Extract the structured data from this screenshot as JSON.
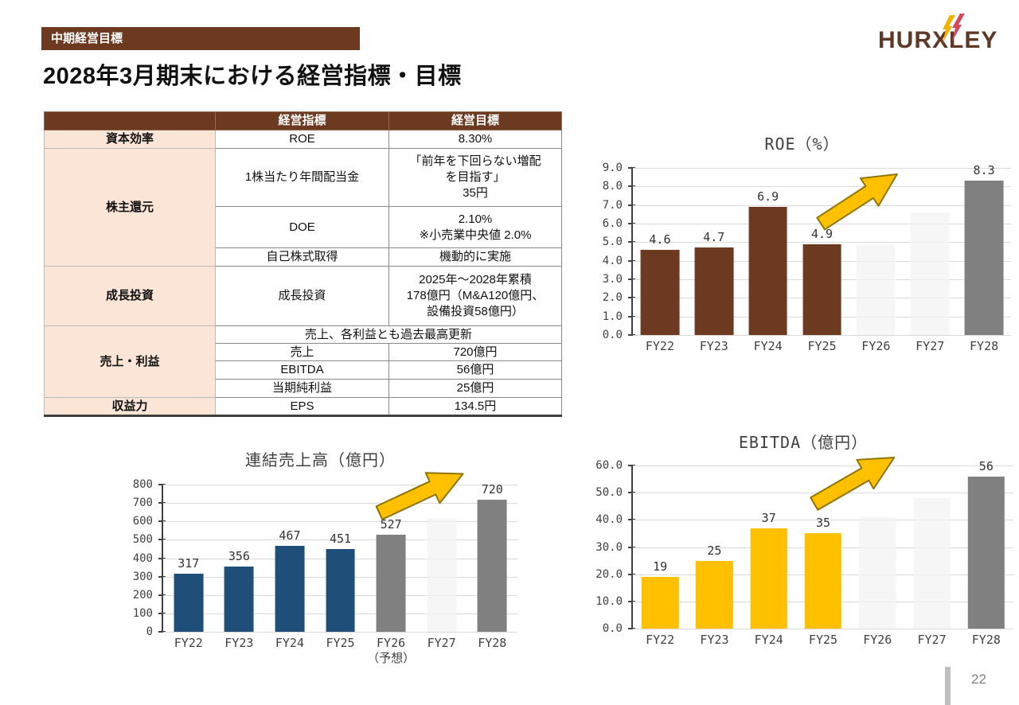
{
  "header": {
    "badge": "中期経営目標",
    "title": "2028年3月期末における経営指標・目標",
    "logo": "HURXLEY",
    "page_number": "22"
  },
  "colors": {
    "brand_brown": "#6C3A21",
    "category_bg": "#FBE5D6",
    "bar_brown": "#6B3A21",
    "bar_blue": "#1F4E79",
    "bar_gold": "#FFC000",
    "bar_gray": "#808080",
    "bar_light_gray": "#F2F2F2",
    "gridline": "#D9D9D9",
    "arrow_fill": "#FFC000",
    "arrow_stroke": "#8C7500",
    "logo_bolt_yellow": "#F2B200",
    "logo_bolt_red": "#D5485A"
  },
  "table": {
    "headers": {
      "indicator": "経営指標",
      "target": "経営目標"
    },
    "rows": {
      "capital_category": "資本効率",
      "capital_indicator": "ROE",
      "capital_target": "8.30%",
      "shareholder_category": "株主還元",
      "dividend_indicator": "1株当たり年間配当金",
      "dividend_target": "「前年を下回らない増配\nを目指す」\n35円",
      "doe_indicator": "DOE",
      "doe_target": "2.10%\n※小売業中央値 2.0%",
      "buyback_indicator": "自己株式取得",
      "buyback_target": "機動的に実施",
      "growth_category": "成長投資",
      "growth_indicator": "成長投資",
      "growth_target": "2025年～2028年累積\n178億円（M&A120億円、\n設備投資58億円）",
      "sales_profit_category": "売上・利益",
      "record_note": "売上、各利益とも過去最高更新",
      "sales_indicator": "売上",
      "sales_target": "720億円",
      "ebitda_indicator": "EBITDA",
      "ebitda_target": "56億円",
      "net_income_indicator": "当期純利益",
      "net_income_target": "25億円",
      "profitability_category": "収益力",
      "eps_indicator": "EPS",
      "eps_target": "134.5円"
    }
  },
  "chart_data": [
    {
      "id": "roe",
      "type": "bar",
      "title": "ROE（%）",
      "xlabel": "",
      "ylabel": "",
      "categories": [
        "FY22",
        "FY23",
        "FY24",
        "FY25",
        "FY26",
        "FY27",
        "FY28"
      ],
      "values": [
        4.6,
        4.7,
        6.9,
        4.9,
        4.9,
        6.6,
        8.3
      ],
      "labels": [
        "4.6",
        "4.7",
        "6.9",
        "4.9",
        "",
        "",
        "8.3"
      ],
      "bar_colors": [
        "#6B3A21",
        "#6B3A21",
        "#6B3A21",
        "#6B3A21",
        "#F2F2F2",
        "#F2F2F2",
        "#808080"
      ],
      "ylim": [
        0,
        9
      ],
      "ytick_step": 1,
      "ytick_decimals": 1,
      "grid": true,
      "legend": false,
      "annotations": [
        "growth-arrow"
      ]
    },
    {
      "id": "sales",
      "type": "bar",
      "title": "連結売上高（億円）",
      "xlabel": "",
      "ylabel": "",
      "categories": [
        "FY22",
        "FY23",
        "FY24",
        "FY25",
        "FY26\n（予想）",
        "FY27",
        "FY28"
      ],
      "values": [
        317,
        356,
        467,
        451,
        527,
        620,
        720
      ],
      "labels": [
        "317",
        "356",
        "467",
        "451",
        "527",
        "",
        "720"
      ],
      "bar_colors": [
        "#1F4E79",
        "#1F4E79",
        "#1F4E79",
        "#1F4E79",
        "#808080",
        "#F2F2F2",
        "#808080"
      ],
      "ylim": [
        0,
        800
      ],
      "ytick_step": 100,
      "ytick_decimals": 0,
      "grid": true,
      "legend": false,
      "annotations": [
        "growth-arrow"
      ]
    },
    {
      "id": "ebitda",
      "type": "bar",
      "title": "EBITDA（億円）",
      "xlabel": "",
      "ylabel": "",
      "categories": [
        "FY22",
        "FY23",
        "FY24",
        "FY25",
        "FY26",
        "FY27",
        "FY28"
      ],
      "values": [
        19,
        25,
        37,
        35,
        41,
        48,
        56
      ],
      "labels": [
        "19",
        "25",
        "37",
        "35",
        "",
        "",
        "56"
      ],
      "bar_colors": [
        "#FFC000",
        "#FFC000",
        "#FFC000",
        "#FFC000",
        "#F2F2F2",
        "#F2F2F2",
        "#808080"
      ],
      "ylim": [
        0,
        60
      ],
      "ytick_step": 10,
      "ytick_decimals": 1,
      "grid": true,
      "legend": false,
      "annotations": [
        "growth-arrow"
      ]
    }
  ]
}
